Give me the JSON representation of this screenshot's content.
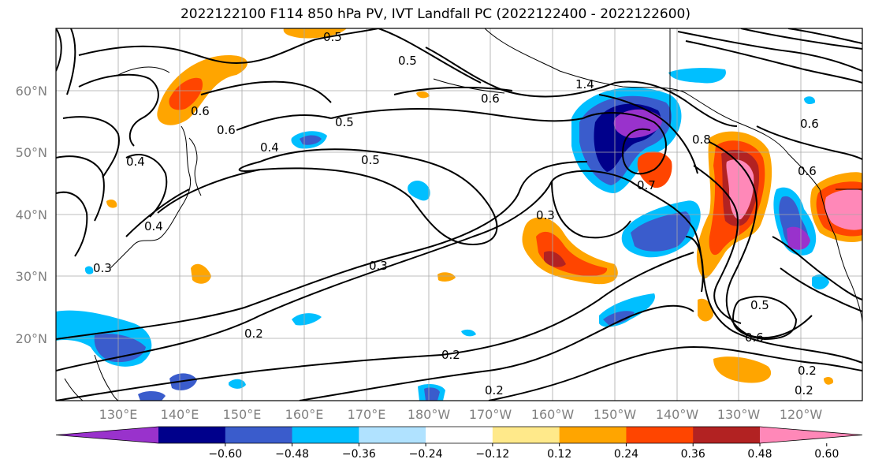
{
  "title": "2022122100 F114 850 hPa PV, IVT Landfall PC (2022122400 - 2022122600)",
  "map": {
    "lat_labels": [
      "60°N",
      "50°N",
      "40°N",
      "30°N",
      "20°N"
    ],
    "lon_labels": [
      "130°E",
      "140°E",
      "150°E",
      "160°E",
      "170°E",
      "180°W",
      "170°W",
      "160°W",
      "150°W",
      "140°W",
      "130°W",
      "120°W"
    ],
    "contour_labels": [
      "0.5",
      "0.5",
      "0.5",
      "0.5",
      "0.6",
      "0.6",
      "0.4",
      "0.4",
      "0.3",
      "0.3",
      "0.2",
      "0.2",
      "0.2",
      "0.2",
      "0.2",
      "0.7",
      "0.8",
      "0.5",
      "0.6",
      "1.4",
      "0.3",
      "0.6",
      "0.6",
      "0.6",
      "0.4"
    ]
  },
  "colorbar": {
    "tick_labels": [
      "−0.60",
      "−0.48",
      "−0.36",
      "−0.24",
      "−0.12",
      "0.12",
      "0.24",
      "0.36",
      "0.48",
      "0.60"
    ],
    "colors": [
      "#9932cc",
      "#00008b",
      "#3a5ccc",
      "#00bfff",
      "#b0e2ff",
      "#ffffff",
      "#ffe98a",
      "#ffa500",
      "#ff4500",
      "#b22222",
      "#ff88b8"
    ]
  }
}
